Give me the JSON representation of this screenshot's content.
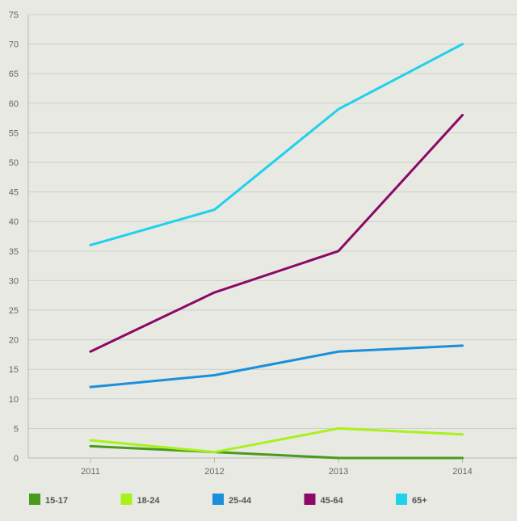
{
  "chart_data": {
    "type": "line",
    "title": "",
    "xlabel": "",
    "ylabel": "",
    "categories": [
      "2011",
      "2012",
      "2013",
      "2014"
    ],
    "ylim": [
      0,
      75
    ],
    "yticks": [
      0,
      5,
      10,
      15,
      20,
      25,
      30,
      35,
      40,
      45,
      50,
      55,
      60,
      65,
      70,
      75
    ],
    "grid": true,
    "legend_position": "bottom",
    "series": [
      {
        "name": "15-17",
        "color": "#4a9a1e",
        "values": [
          2,
          1,
          0,
          0
        ]
      },
      {
        "name": "18-24",
        "color": "#a8f21c",
        "values": [
          3,
          1,
          5,
          4
        ]
      },
      {
        "name": "25-44",
        "color": "#1a8fdc",
        "values": [
          12,
          14,
          18,
          19
        ]
      },
      {
        "name": "45-64",
        "color": "#8a0a66",
        "values": [
          18,
          28,
          35,
          58
        ]
      },
      {
        "name": "65+",
        "color": "#1ed2ea",
        "values": [
          36,
          42,
          59,
          70
        ]
      }
    ]
  }
}
